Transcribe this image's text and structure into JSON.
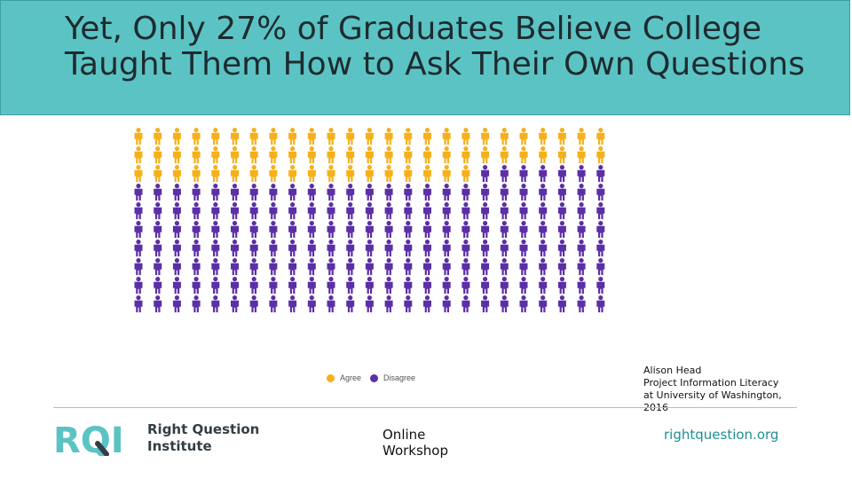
{
  "slide": {
    "title": "Yet, Only 27% of Graduates Believe College Taught Them How to Ask Their Own Questions"
  },
  "chart_data": {
    "type": "pictogram",
    "total": 250,
    "agree": 68,
    "disagree": 182,
    "legend": [
      "Agree",
      "Disagree"
    ],
    "colors": {
      "agree": "#f6b01a",
      "disagree": "#5b2fa6"
    }
  },
  "citation": {
    "lines": [
      "Alison Head",
      "Project Information Literacy",
      "at University of Washington,",
      "2016"
    ]
  },
  "footer": {
    "logo": {
      "mark": "RQI",
      "line1": "Right Question",
      "line2": "Institute"
    },
    "center_line1": "Online",
    "center_line2": "Workshop",
    "website": "rightquestion.org"
  }
}
